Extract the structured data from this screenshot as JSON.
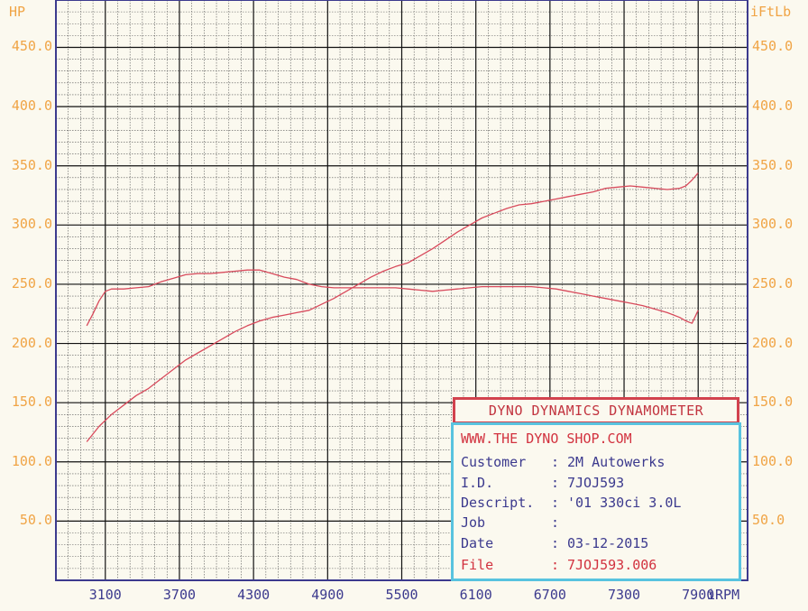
{
  "chart_data": {
    "type": "line",
    "y_left_label": "HP",
    "y_right_label": "iFtLb",
    "x_unit": "iRPM",
    "x_ticks": [
      "3100",
      "3700",
      "4300",
      "4900",
      "5500",
      "6100",
      "6700",
      "7300",
      "7900"
    ],
    "y_ticks": [
      "50.0",
      "100.0",
      "150.0",
      "200.0",
      "250.0",
      "300.0",
      "350.0",
      "400.0",
      "450.0"
    ],
    "xlim": [
      2700,
      8300
    ],
    "ylim": [
      0,
      490
    ],
    "series": [
      {
        "color": "#d84a5c",
        "x": [
          2950,
          3050,
          3150,
          3250,
          3350,
          3450,
          3550,
          3650,
          3750,
          3850,
          3950,
          4050,
          4150,
          4250,
          4350,
          4450,
          4550,
          4650,
          4750,
          4850,
          4950,
          5050,
          5150,
          5250,
          5350,
          5450,
          5550,
          5650,
          5750,
          5850,
          5950,
          6050,
          6150,
          6250,
          6350,
          6450,
          6550,
          6650,
          6750,
          6850,
          6950,
          7050,
          7150,
          7250,
          7350,
          7450,
          7550,
          7650,
          7750,
          7800,
          7850,
          7900
        ],
        "y": [
          117,
          130,
          140,
          148,
          156,
          162,
          170,
          178,
          186,
          192,
          198,
          204,
          210,
          215,
          219,
          222,
          224,
          226,
          228,
          233,
          238,
          244,
          250,
          256,
          261,
          265,
          268,
          274,
          280,
          287,
          294,
          300,
          306,
          310,
          314,
          317,
          318,
          320,
          322,
          324,
          326,
          328,
          331,
          332,
          333,
          332,
          331,
          330,
          331,
          333,
          338,
          344
        ]
      },
      {
        "color": "#d84a5c",
        "x": [
          2950,
          3000,
          3050,
          3100,
          3150,
          3250,
          3350,
          3450,
          3550,
          3650,
          3750,
          3850,
          3950,
          4050,
          4150,
          4250,
          4350,
          4450,
          4550,
          4650,
          4750,
          4850,
          4950,
          5050,
          5150,
          5250,
          5350,
          5450,
          5550,
          5650,
          5750,
          5850,
          5950,
          6050,
          6150,
          6250,
          6350,
          6450,
          6550,
          6650,
          6750,
          6850,
          6950,
          7050,
          7150,
          7250,
          7350,
          7450,
          7550,
          7650,
          7750,
          7800,
          7850,
          7900
        ],
        "y": [
          215,
          225,
          236,
          244,
          246,
          246,
          247,
          248,
          252,
          255,
          258,
          259,
          259,
          260,
          261,
          262,
          262,
          259,
          256,
          254,
          250,
          248,
          247,
          247,
          247,
          247,
          247,
          247,
          246,
          245,
          244,
          245,
          246,
          247,
          248,
          248,
          248,
          248,
          248,
          247,
          246,
          244,
          242,
          240,
          238,
          236,
          234,
          232,
          229,
          226,
          222,
          219,
          217,
          228
        ]
      }
    ]
  },
  "info": {
    "title": "DYNO DYNAMICS DYNAMOMETER",
    "website": "WWW.THE DYNO SHOP.COM",
    "rows": [
      {
        "key": "Customer",
        "colon": ":",
        "value": "2M Autowerks"
      },
      {
        "key": "I.D.",
        "colon": ":",
        "value": "7JOJ593"
      },
      {
        "key": "Descript.",
        "colon": ":",
        "value": "'01 330ci 3.0L"
      },
      {
        "key": "Job",
        "colon": ":",
        "value": ""
      },
      {
        "key": "Date",
        "colon": ":",
        "value": "03-12-2015"
      },
      {
        "key": "File",
        "colon": ":",
        "value": "7JOJ593.006"
      }
    ]
  },
  "colors": {
    "frame": "#3c3a8e",
    "grid_minor": "#555555",
    "grid_major": "#111111",
    "axis_text": "#f0a445",
    "curve": "#d84a5c",
    "title_border": "#d2424e",
    "info_border": "#58c3df"
  }
}
